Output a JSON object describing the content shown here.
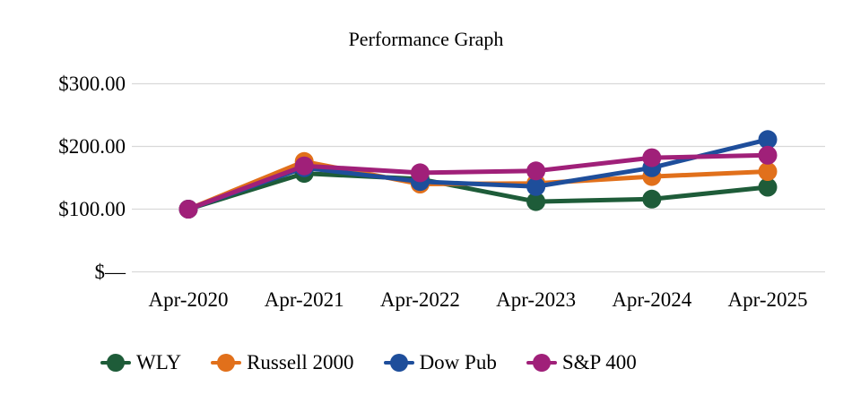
{
  "chart_data": {
    "type": "line",
    "title": "Performance Graph",
    "categories": [
      "Apr-2020",
      "Apr-2021",
      "Apr-2022",
      "Apr-2023",
      "Apr-2024",
      "Apr-2025"
    ],
    "series": [
      {
        "name": "WLY",
        "color": "#1E5C39",
        "values": [
          100,
          157,
          148,
          112,
          116,
          135
        ]
      },
      {
        "name": "Russell 2000",
        "color": "#E1701B",
        "values": [
          100,
          176,
          140,
          141,
          152,
          160
        ]
      },
      {
        "name": "Dow Pub",
        "color": "#1E4E9B",
        "values": [
          100,
          166,
          144,
          136,
          166,
          211
        ]
      },
      {
        "name": "S&P 400",
        "color": "#A02079",
        "values": [
          100,
          169,
          158,
          161,
          182,
          186
        ]
      }
    ],
    "y_ticks": [
      "$300.00",
      "$200.00",
      "$100.00",
      "$—"
    ],
    "y_tick_values": [
      300,
      200,
      100,
      0
    ],
    "ylim": [
      0,
      300
    ],
    "grid": true,
    "gridline_color": "#D9D9D9",
    "legend_position": "bottom",
    "marker": "circle",
    "baseline_value": 100
  }
}
